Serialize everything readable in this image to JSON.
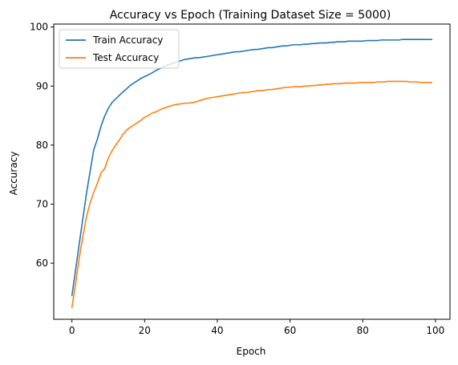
{
  "chart_data": {
    "type": "line",
    "title": "Accuracy vs Epoch (Training Dataset Size = 5000)",
    "xlabel": "Epoch",
    "ylabel": "Accuracy",
    "xlim": [
      -5,
      104
    ],
    "ylim": [
      50.5,
      100.5
    ],
    "xticks": [
      0,
      20,
      40,
      60,
      80,
      100
    ],
    "yticks": [
      60,
      70,
      80,
      90,
      100
    ],
    "grid": false,
    "legend_position": "upper-left",
    "x": [
      0,
      1,
      2,
      3,
      4,
      5,
      6,
      7,
      8,
      9,
      10,
      11,
      12,
      13,
      14,
      15,
      16,
      17,
      18,
      19,
      20,
      21,
      22,
      23,
      24,
      25,
      26,
      27,
      28,
      29,
      30,
      31,
      32,
      33,
      34,
      35,
      36,
      37,
      38,
      39,
      40,
      41,
      42,
      43,
      44,
      45,
      46,
      47,
      48,
      49,
      50,
      51,
      52,
      53,
      54,
      55,
      56,
      57,
      58,
      59,
      60,
      61,
      62,
      63,
      64,
      65,
      66,
      67,
      68,
      69,
      70,
      71,
      72,
      73,
      74,
      75,
      76,
      77,
      78,
      79,
      80,
      81,
      82,
      83,
      84,
      85,
      86,
      87,
      88,
      89,
      90,
      91,
      92,
      93,
      94,
      95,
      96,
      97,
      98,
      99
    ],
    "series": [
      {
        "name": "Train Accuracy",
        "color": "#1f77b4",
        "values": [
          54.5,
          58.8,
          63.2,
          67.5,
          71.8,
          75.5,
          79.2,
          81.0,
          83.2,
          84.9,
          86.2,
          87.2,
          87.8,
          88.4,
          89.0,
          89.5,
          90.1,
          90.5,
          90.9,
          91.3,
          91.6,
          91.9,
          92.2,
          92.6,
          92.9,
          93.2,
          93.5,
          93.7,
          93.9,
          94.1,
          94.3,
          94.5,
          94.6,
          94.7,
          94.8,
          94.8,
          94.9,
          95.0,
          95.1,
          95.2,
          95.3,
          95.4,
          95.5,
          95.6,
          95.7,
          95.8,
          95.8,
          95.9,
          96.0,
          96.1,
          96.2,
          96.2,
          96.3,
          96.4,
          96.5,
          96.5,
          96.6,
          96.7,
          96.8,
          96.8,
          96.9,
          97.0,
          97.0,
          97.0,
          97.1,
          97.1,
          97.2,
          97.2,
          97.3,
          97.3,
          97.3,
          97.4,
          97.4,
          97.5,
          97.5,
          97.5,
          97.6,
          97.6,
          97.6,
          97.6,
          97.6,
          97.7,
          97.7,
          97.7,
          97.7,
          97.8,
          97.8,
          97.8,
          97.8,
          97.8,
          97.8,
          97.9,
          97.9,
          97.9,
          97.9,
          97.9,
          97.9,
          97.9,
          97.9,
          97.9
        ]
      },
      {
        "name": "Test Accuracy",
        "color": "#ff7f0e",
        "values": [
          52.5,
          56.5,
          60.8,
          64.5,
          67.8,
          70.2,
          72.0,
          73.5,
          75.3,
          76.0,
          77.8,
          79.0,
          80.0,
          80.8,
          81.8,
          82.5,
          83.0,
          83.4,
          83.8,
          84.2,
          84.7,
          85.0,
          85.4,
          85.6,
          85.9,
          86.2,
          86.4,
          86.6,
          86.8,
          86.9,
          87.0,
          87.1,
          87.1,
          87.2,
          87.3,
          87.5,
          87.7,
          87.9,
          88.0,
          88.1,
          88.2,
          88.3,
          88.4,
          88.5,
          88.6,
          88.7,
          88.8,
          88.9,
          88.9,
          89.0,
          89.1,
          89.2,
          89.2,
          89.3,
          89.4,
          89.4,
          89.5,
          89.6,
          89.7,
          89.8,
          89.8,
          89.9,
          89.9,
          89.9,
          90.0,
          90.0,
          90.1,
          90.1,
          90.2,
          90.2,
          90.3,
          90.3,
          90.4,
          90.4,
          90.4,
          90.5,
          90.5,
          90.5,
          90.5,
          90.6,
          90.6,
          90.6,
          90.6,
          90.6,
          90.7,
          90.7,
          90.7,
          90.8,
          90.8,
          90.8,
          90.8,
          90.8,
          90.8,
          90.7,
          90.7,
          90.7,
          90.6,
          90.6,
          90.6,
          90.6
        ]
      }
    ]
  }
}
